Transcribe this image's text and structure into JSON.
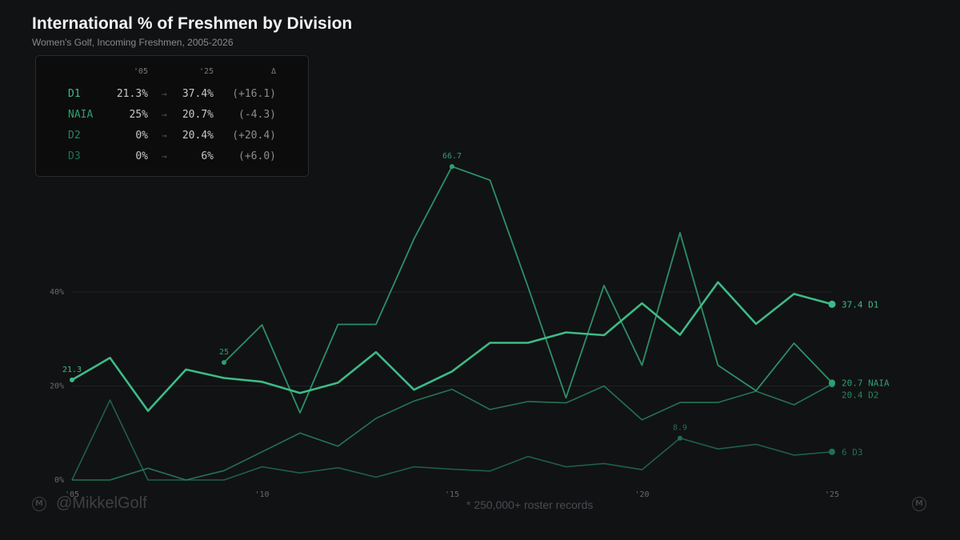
{
  "title": "International % of Freshmen by Division",
  "subtitle": "Women's Golf, Incoming Freshmen, 2005-2026",
  "summary": {
    "header": {
      "start": "'05",
      "end": "'25",
      "delta": "Δ"
    },
    "arrow": "→",
    "rows": [
      {
        "division": "D1",
        "start": "21.3%",
        "end": "37.4%",
        "delta": "(+16.1)",
        "color": "#3dbb85"
      },
      {
        "division": "NAIA",
        "start": "25%",
        "end": "20.7%",
        "delta": "(-4.3)",
        "color": "#2f9e6f"
      },
      {
        "division": "D2",
        "start": "0%",
        "end": "20.4%",
        "delta": "(+20.4)",
        "color": "#27865e"
      },
      {
        "division": "D3",
        "start": "0%",
        "end": "6%",
        "delta": "(+6.0)",
        "color": "#21704f"
      }
    ]
  },
  "footer": {
    "handle": "@MikkelGolf",
    "note": "* 250,000+ roster records",
    "logo_glyph": "M"
  },
  "chart_data": {
    "type": "line",
    "xlabel": "",
    "ylabel": "",
    "x": [
      2005,
      2006,
      2007,
      2008,
      2009,
      2010,
      2011,
      2012,
      2013,
      2014,
      2015,
      2016,
      2017,
      2018,
      2019,
      2020,
      2021,
      2022,
      2023,
      2024,
      2025
    ],
    "xlim": [
      2005,
      2025
    ],
    "ylim": [
      0,
      80
    ],
    "x_ticks": [
      {
        "value": 2005,
        "label": "'05"
      },
      {
        "value": 2010,
        "label": "'10"
      },
      {
        "value": 2015,
        "label": "'15"
      },
      {
        "value": 2020,
        "label": "'20"
      },
      {
        "value": 2025,
        "label": "'25"
      }
    ],
    "y_ticks": [
      {
        "value": 0,
        "label": "0%"
      },
      {
        "value": 20,
        "label": "20%"
      },
      {
        "value": 40,
        "label": "40%"
      }
    ],
    "grid": true,
    "series": [
      {
        "name": "D1",
        "color": "#3dbb85",
        "width": 2.6,
        "opacity": 1,
        "values": [
          21.3,
          26,
          14.7,
          23.5,
          21.7,
          20.9,
          18.5,
          20.7,
          27.2,
          19.2,
          23.1,
          29.2,
          29.2,
          31.4,
          30.8,
          37.6,
          30.9,
          42.1,
          33.2,
          39.6,
          37.4
        ],
        "end_label": "37.4 D1"
      },
      {
        "name": "NAIA",
        "color": "#2f9e6f",
        "width": 1.8,
        "opacity": 0.9,
        "values": [
          null,
          null,
          null,
          null,
          25,
          33,
          14.3,
          33.1,
          33.1,
          51.3,
          66.7,
          63.8,
          41.1,
          17.5,
          41.4,
          24.4,
          52.6,
          24.4,
          19,
          29.1,
          20.7
        ],
        "end_label": "20.7 NAIA"
      },
      {
        "name": "D2",
        "color": "#27865e",
        "width": 1.6,
        "opacity": 0.85,
        "values": [
          0,
          0,
          2.5,
          0,
          2,
          6,
          10,
          7.2,
          13.1,
          16.8,
          19.3,
          15,
          16.7,
          16.4,
          20,
          12.8,
          16.5,
          16.5,
          18.9,
          16,
          20.4
        ],
        "end_label": "20.4 D2"
      },
      {
        "name": "D3",
        "color": "#21704f",
        "width": 1.6,
        "opacity": 0.85,
        "values": [
          0,
          17,
          0,
          0,
          0,
          2.8,
          1.5,
          2.6,
          0.6,
          2.8,
          2.3,
          1.9,
          5,
          2.8,
          3.5,
          2.2,
          8.9,
          6.6,
          7.6,
          5.3,
          6
        ],
        "end_label": "6 D3"
      }
    ],
    "annotations": [
      {
        "series": "D1",
        "x": 2005,
        "y": 21.3,
        "label": "21.3"
      },
      {
        "series": "NAIA",
        "x": 2009,
        "y": 25,
        "label": "25"
      },
      {
        "series": "NAIA",
        "x": 2015,
        "y": 66.7,
        "label": "66.7"
      },
      {
        "series": "D3",
        "x": 2021,
        "y": 8.9,
        "label": "8.9"
      }
    ]
  }
}
